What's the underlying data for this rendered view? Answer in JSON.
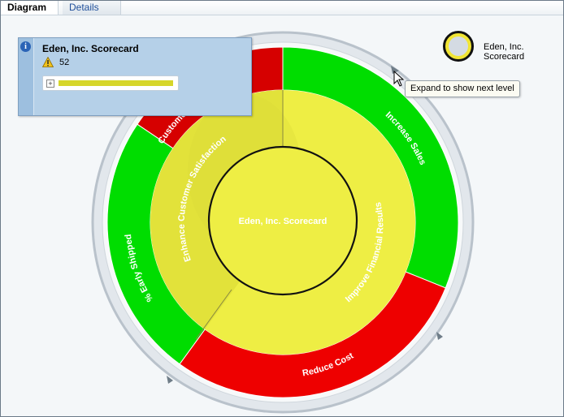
{
  "tabs": [
    {
      "label": "Diagram",
      "selected": true
    },
    {
      "label": "Details",
      "selected": false
    }
  ],
  "diagram": {
    "center": {
      "label": "Eden, Inc. Scorecard",
      "color": "#eeee44"
    },
    "inner_ring": [
      {
        "label": "Enhance Customer Satisfaction",
        "color": "#e2e23a"
      },
      {
        "label": "Improve Financial Results",
        "color": "#eeee44"
      }
    ],
    "outer_ring": [
      {
        "label": "Customer",
        "color": "#d60000"
      },
      {
        "label": "Increase Sales",
        "color": "#00dd00"
      },
      {
        "label": "Reduce Cost",
        "color": "#ee0000"
      },
      {
        "label": "% Early Shipped",
        "color": "#00dd00"
      }
    ]
  },
  "popup": {
    "title": "Eden, Inc. Scorecard",
    "value": "52",
    "bar_color": "#d6d62a",
    "icons": [
      "info-icon",
      "warning-icon",
      "expand-plus-icon"
    ]
  },
  "legend": {
    "label": "Eden, Inc. Scorecard"
  },
  "tooltip": {
    "text": "Expand to show next level"
  }
}
